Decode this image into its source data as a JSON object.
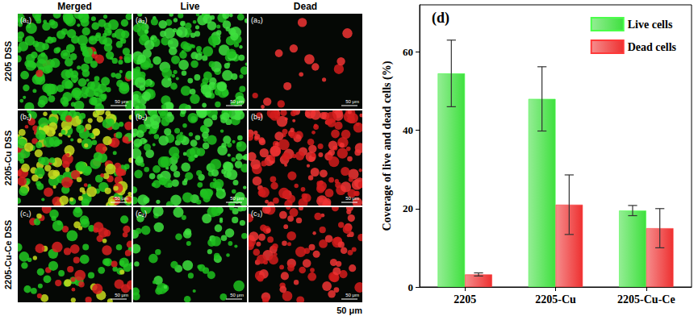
{
  "chart_data": {
    "type": "bar",
    "title": "(d)",
    "categories": [
      "2205",
      "2205-Cu",
      "2205-Cu-Ce"
    ],
    "y_label": "Coverage of live and dead cells (%)",
    "ylim": [
      0,
      72
    ],
    "yticks": [
      0,
      20,
      40,
      60
    ],
    "series": [
      {
        "name": "Live cells",
        "color": "#3ee03e",
        "values": [
          54.5,
          48,
          19.5
        ],
        "errors": [
          8.5,
          8.2,
          1.3
        ]
      },
      {
        "name": "Dead cells",
        "color": "#ee3030",
        "values": [
          3.2,
          21,
          15
        ],
        "errors": [
          0.4,
          7.6,
          5
        ]
      }
    ],
    "legend": "upper right",
    "grid": false
  },
  "micrographs": {
    "columns": [
      "Merged",
      "Live",
      "Dead"
    ],
    "rows": [
      {
        "label": "2205 DSS",
        "panels": [
          "(a₁)",
          "(a₂)",
          "(a₃)"
        ]
      },
      {
        "label": "2205-Cu DSS",
        "panels": [
          "(b₁)",
          "(b₂)",
          "(b₃)"
        ]
      },
      {
        "label": "2205-Cu-Ce DSS",
        "panels": [
          "(c₁)",
          "(c₂)",
          "(c₃)"
        ]
      }
    ],
    "panel_scale_label": "50 μm",
    "scale_bar": "50 μm"
  }
}
